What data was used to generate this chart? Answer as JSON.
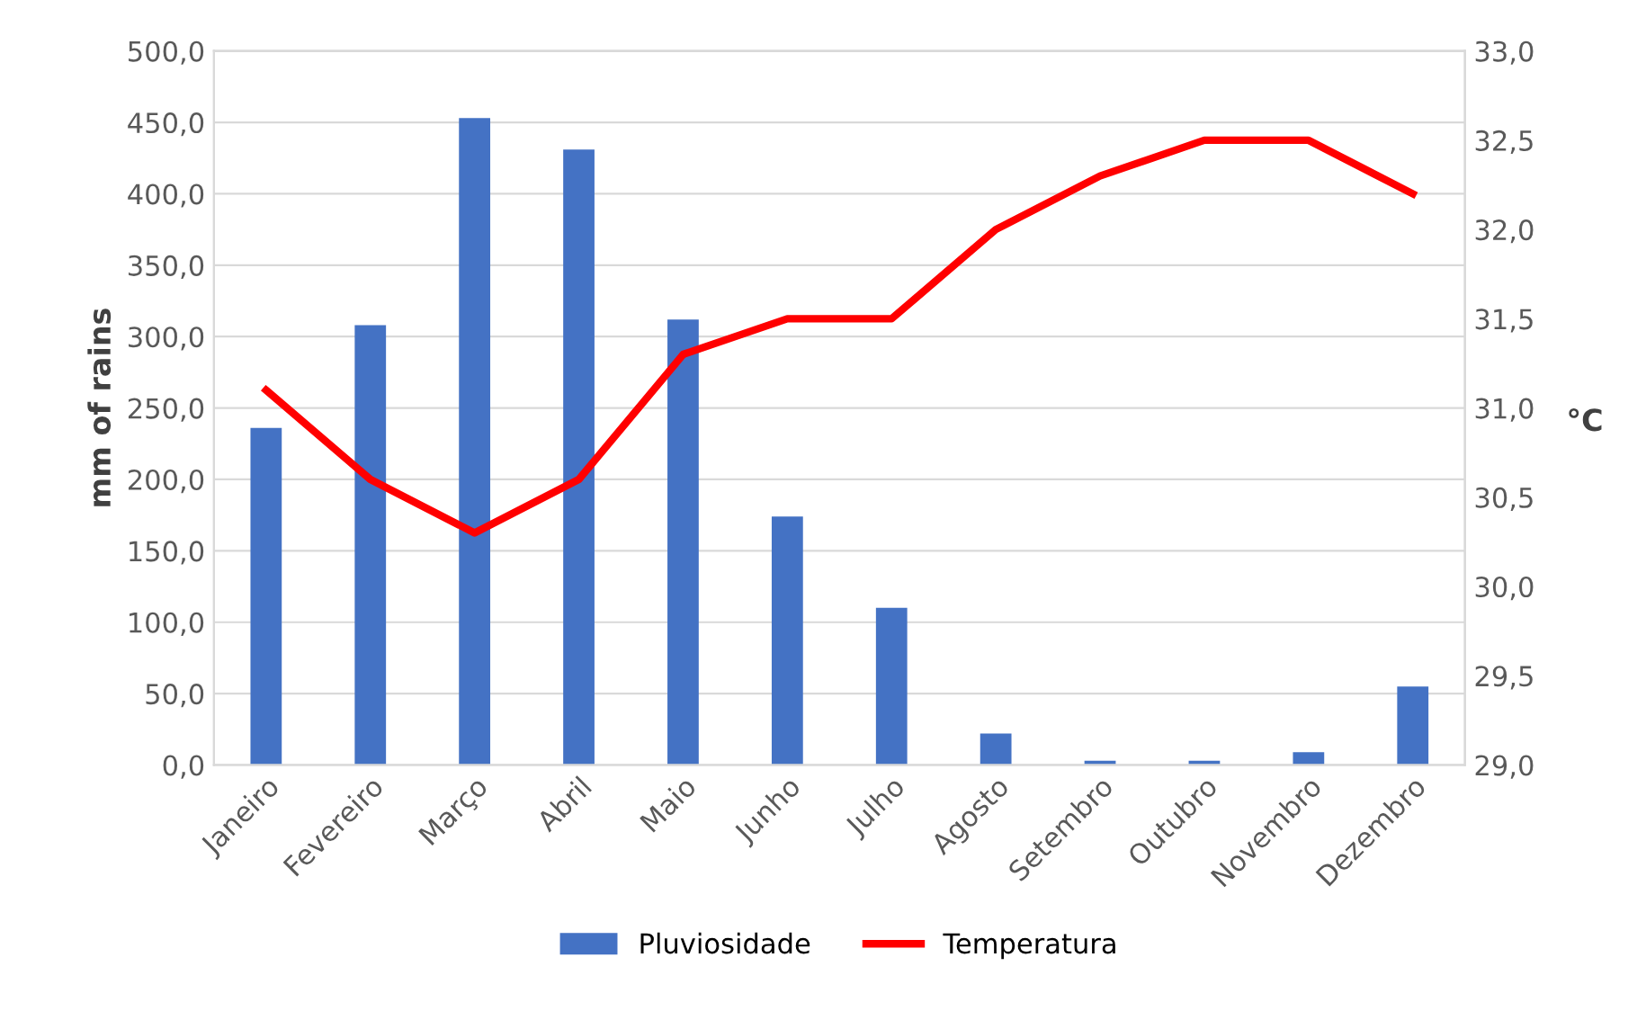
{
  "chart_data": {
    "type": "bar",
    "categories": [
      "Janeiro",
      "Fevereiro",
      "Março",
      "Abril",
      "Maio",
      "Junho",
      "Julho",
      "Agosto",
      "Setembro",
      "Outubro",
      "Novembro",
      "Dezembro"
    ],
    "series": [
      {
        "name": "Pluviosidade",
        "color": "#4472c4",
        "values": [
          236,
          308,
          453,
          431,
          312,
          174,
          110,
          22,
          3,
          3,
          9,
          55
        ]
      },
      {
        "name": "Temperatura",
        "type": "line",
        "axis": "y2",
        "color": "#ff0000",
        "values": [
          31.1,
          30.6,
          30.3,
          30.6,
          31.3,
          31.5,
          31.5,
          32.0,
          32.3,
          32.5,
          32.5,
          32.2
        ]
      }
    ],
    "ylabel": "mm of rains",
    "y2label": "°C",
    "ylim": [
      0,
      500
    ],
    "yticks": [
      {
        "value": 0,
        "label": "0,0"
      },
      {
        "value": 50,
        "label": "50,0"
      },
      {
        "value": 100,
        "label": "100,0"
      },
      {
        "value": 150,
        "label": "150,0"
      },
      {
        "value": 200,
        "label": "200,0"
      },
      {
        "value": 250,
        "label": "250,0"
      },
      {
        "value": 300,
        "label": "300,0"
      },
      {
        "value": 350,
        "label": "350,0"
      },
      {
        "value": 400,
        "label": "400,0"
      },
      {
        "value": 450,
        "label": "450,0"
      },
      {
        "value": 500,
        "label": "500,0"
      }
    ],
    "y2lim": [
      29,
      33
    ],
    "y2ticks": [
      {
        "value": 29,
        "label": "29,0"
      },
      {
        "value": 29.5,
        "label": "29,5"
      },
      {
        "value": 30,
        "label": "30,0"
      },
      {
        "value": 30.5,
        "label": "30,5"
      },
      {
        "value": 31,
        "label": "31,0"
      },
      {
        "value": 31.5,
        "label": "31,5"
      },
      {
        "value": 32,
        "label": "32,0"
      },
      {
        "value": 32.5,
        "label": "32,5"
      },
      {
        "value": 33,
        "label": "33,0"
      }
    ],
    "grid": "y",
    "legend": "bottom",
    "marker": "none",
    "line_style": "solid"
  }
}
